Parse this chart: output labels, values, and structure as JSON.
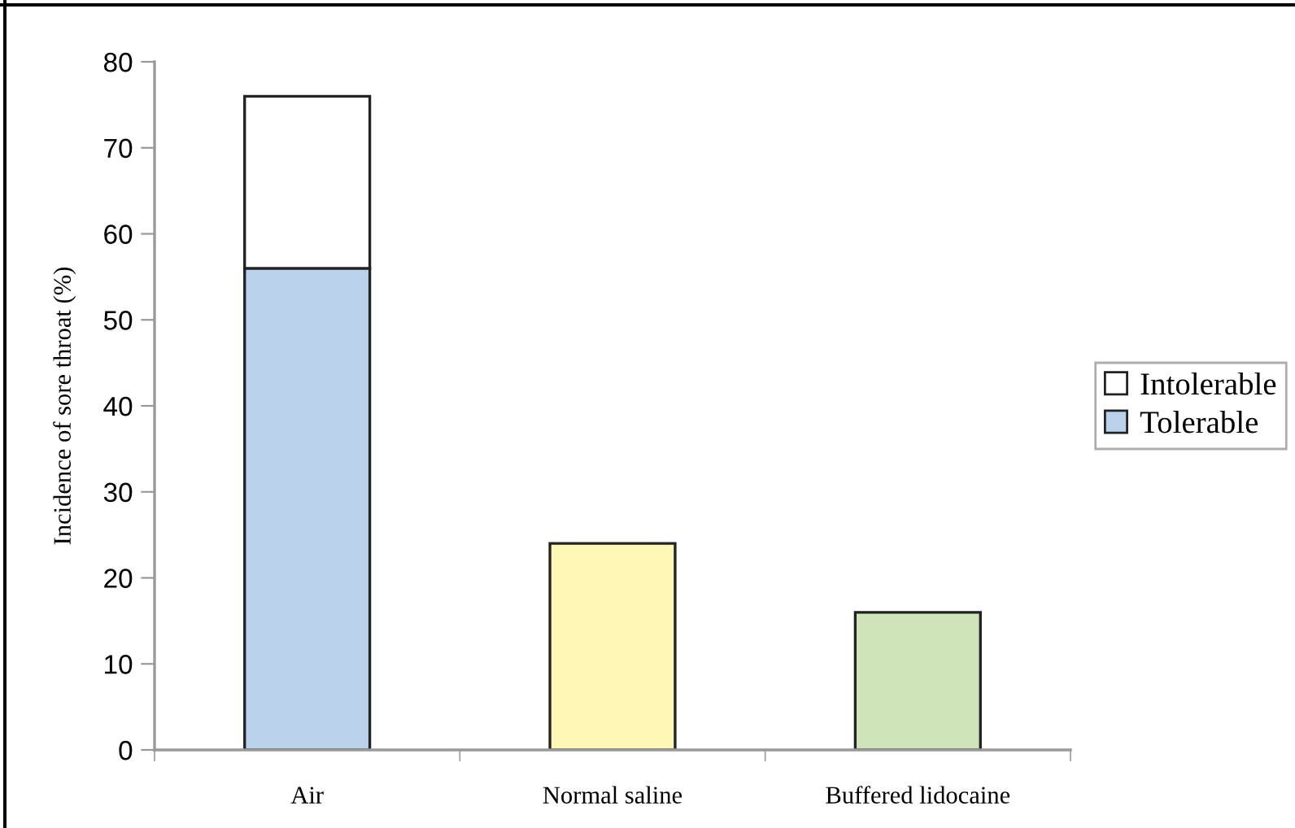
{
  "chart_data": {
    "type": "bar",
    "stacked": true,
    "ylabel": "Incidence of sore throat (%)",
    "categories": [
      "Air",
      "Normal saline",
      "Buffered lidocaine"
    ],
    "series": [
      {
        "name": "Tolerable",
        "color": "#b9d1ea",
        "colors": [
          "#b9d1ea",
          "#fef7b6",
          "#cfe4b9"
        ],
        "values": [
          56,
          24,
          16
        ]
      },
      {
        "name": "Intolerable",
        "color": "#ffffff",
        "values": [
          20,
          null,
          null
        ]
      }
    ],
    "ylim": [
      0,
      80
    ],
    "yticks": [
      0,
      10,
      20,
      30,
      40,
      50,
      60,
      70,
      80
    ],
    "grid": false,
    "legend": "right"
  }
}
